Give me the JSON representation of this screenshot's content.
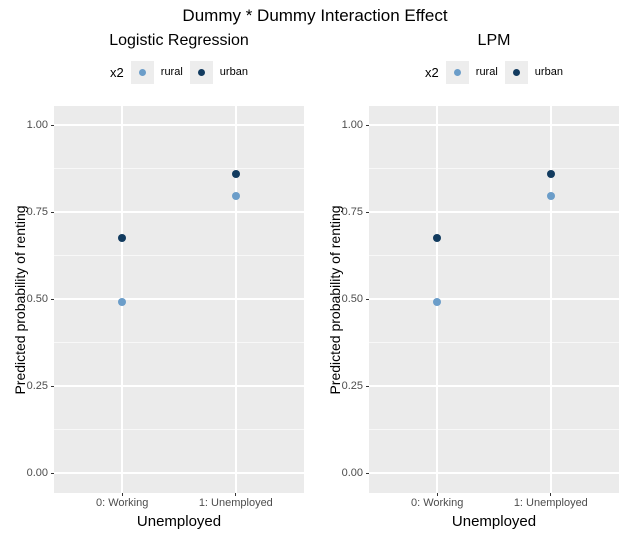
{
  "chart_data": {
    "type": "scatter",
    "title": "Dummy * Dummy Interaction Effect",
    "categories": [
      "0: Working",
      "1: Unemployed"
    ],
    "xlabel": "Unemployed",
    "ylabel": "Predicted probability of renting",
    "ylim": [
      0,
      1
    ],
    "yticks": [
      {
        "value": 0.0,
        "label": "0.00"
      },
      {
        "value": 0.25,
        "label": "0.25"
      },
      {
        "value": 0.5,
        "label": "0.50"
      },
      {
        "value": 0.75,
        "label": "0.75"
      },
      {
        "value": 1.0,
        "label": "1.00"
      }
    ],
    "grid": {
      "major": true,
      "minor": true
    },
    "legend": {
      "title": "x2",
      "position": "top",
      "entries": [
        {
          "label": "rural",
          "color": "#6b9dc9"
        },
        {
          "label": "urban",
          "color": "#123b5f"
        }
      ]
    },
    "panels": [
      {
        "title": "Logistic Regression",
        "series": [
          {
            "name": "rural",
            "values": [
              0.49,
              0.795
            ]
          },
          {
            "name": "urban",
            "values": [
              0.675,
              0.86
            ]
          }
        ]
      },
      {
        "title": "LPM",
        "series": [
          {
            "name": "rural",
            "values": [
              0.49,
              0.795
            ]
          },
          {
            "name": "urban",
            "values": [
              0.675,
              0.86
            ]
          }
        ]
      }
    ],
    "colors": {
      "panel_background": "#ebebeb",
      "gridline": "#ffffff",
      "tick_text": "#4d4d4d",
      "legend_key_background": "#ededed"
    }
  }
}
